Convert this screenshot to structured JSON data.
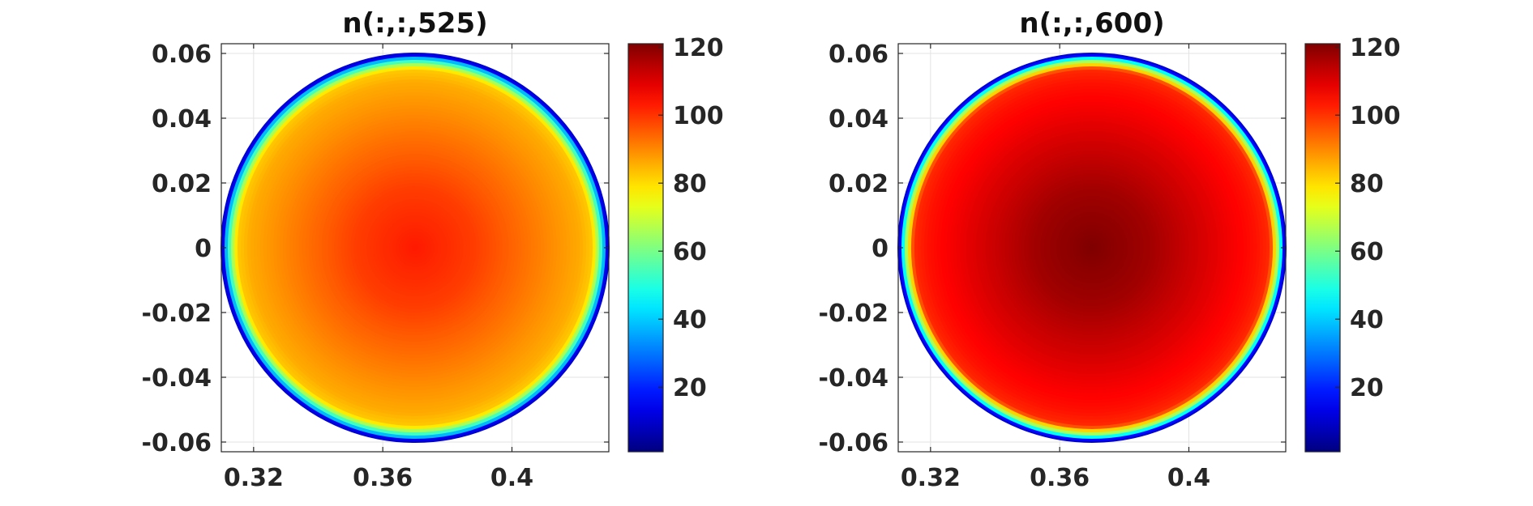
{
  "chart_data": [
    {
      "type": "heatmap",
      "title": "n(:,:,525)",
      "xlabel": "",
      "ylabel": "",
      "xlim": [
        0.31,
        0.43
      ],
      "ylim": [
        -0.063,
        0.063
      ],
      "x_ticks": [
        0.32,
        0.36,
        0.4
      ],
      "x_tick_labels": [
        "0.32",
        "0.36",
        "0.4"
      ],
      "y_ticks": [
        0.06,
        0.04,
        0.02,
        0,
        -0.02,
        -0.04,
        -0.06
      ],
      "y_tick_labels": [
        "0.06",
        "0.04",
        "0.02",
        "0",
        "-0.02",
        "-0.04",
        "-0.06"
      ],
      "grid": true,
      "domain": {
        "shape": "circle",
        "center": [
          0.37,
          0.0
        ],
        "radius": 0.06
      },
      "radial_profile": {
        "r_fraction": [
          0,
          0.3,
          0.6,
          0.85,
          0.92,
          0.97,
          1.0
        ],
        "value": [
          103,
          99,
          92,
          86,
          82,
          45,
          2
        ]
      },
      "colormap": "jet",
      "colorbar": {
        "ticks": [
          20,
          40,
          60,
          80,
          100,
          120
        ],
        "tick_labels": [
          "20",
          "40",
          "60",
          "80",
          "100",
          "120"
        ],
        "range": [
          1,
          121
        ]
      }
    },
    {
      "type": "heatmap",
      "title": "n(:,:,600)",
      "xlabel": "",
      "ylabel": "",
      "xlim": [
        0.31,
        0.43
      ],
      "ylim": [
        -0.063,
        0.063
      ],
      "x_ticks": [
        0.32,
        0.36,
        0.4
      ],
      "x_tick_labels": [
        "0.32",
        "0.36",
        "0.4"
      ],
      "y_ticks": [
        0.06,
        0.04,
        0.02,
        0,
        -0.02,
        -0.04,
        -0.06
      ],
      "y_tick_labels": [
        "0.06",
        "0.04",
        "0.02",
        "0",
        "-0.02",
        "-0.04",
        "-0.06"
      ],
      "grid": true,
      "domain": {
        "shape": "circle",
        "center": [
          0.37,
          0.0
        ],
        "radius": 0.06
      },
      "radial_profile": {
        "r_fraction": [
          0,
          0.3,
          0.6,
          0.85,
          0.92,
          0.97,
          1.0
        ],
        "value": [
          121,
          117,
          110,
          104,
          101,
          55,
          2
        ]
      },
      "colormap": "jet",
      "colorbar": {
        "ticks": [
          20,
          40,
          60,
          80,
          100,
          120
        ],
        "tick_labels": [
          "20",
          "40",
          "60",
          "80",
          "100",
          "120"
        ],
        "range": [
          1,
          121
        ]
      }
    }
  ]
}
